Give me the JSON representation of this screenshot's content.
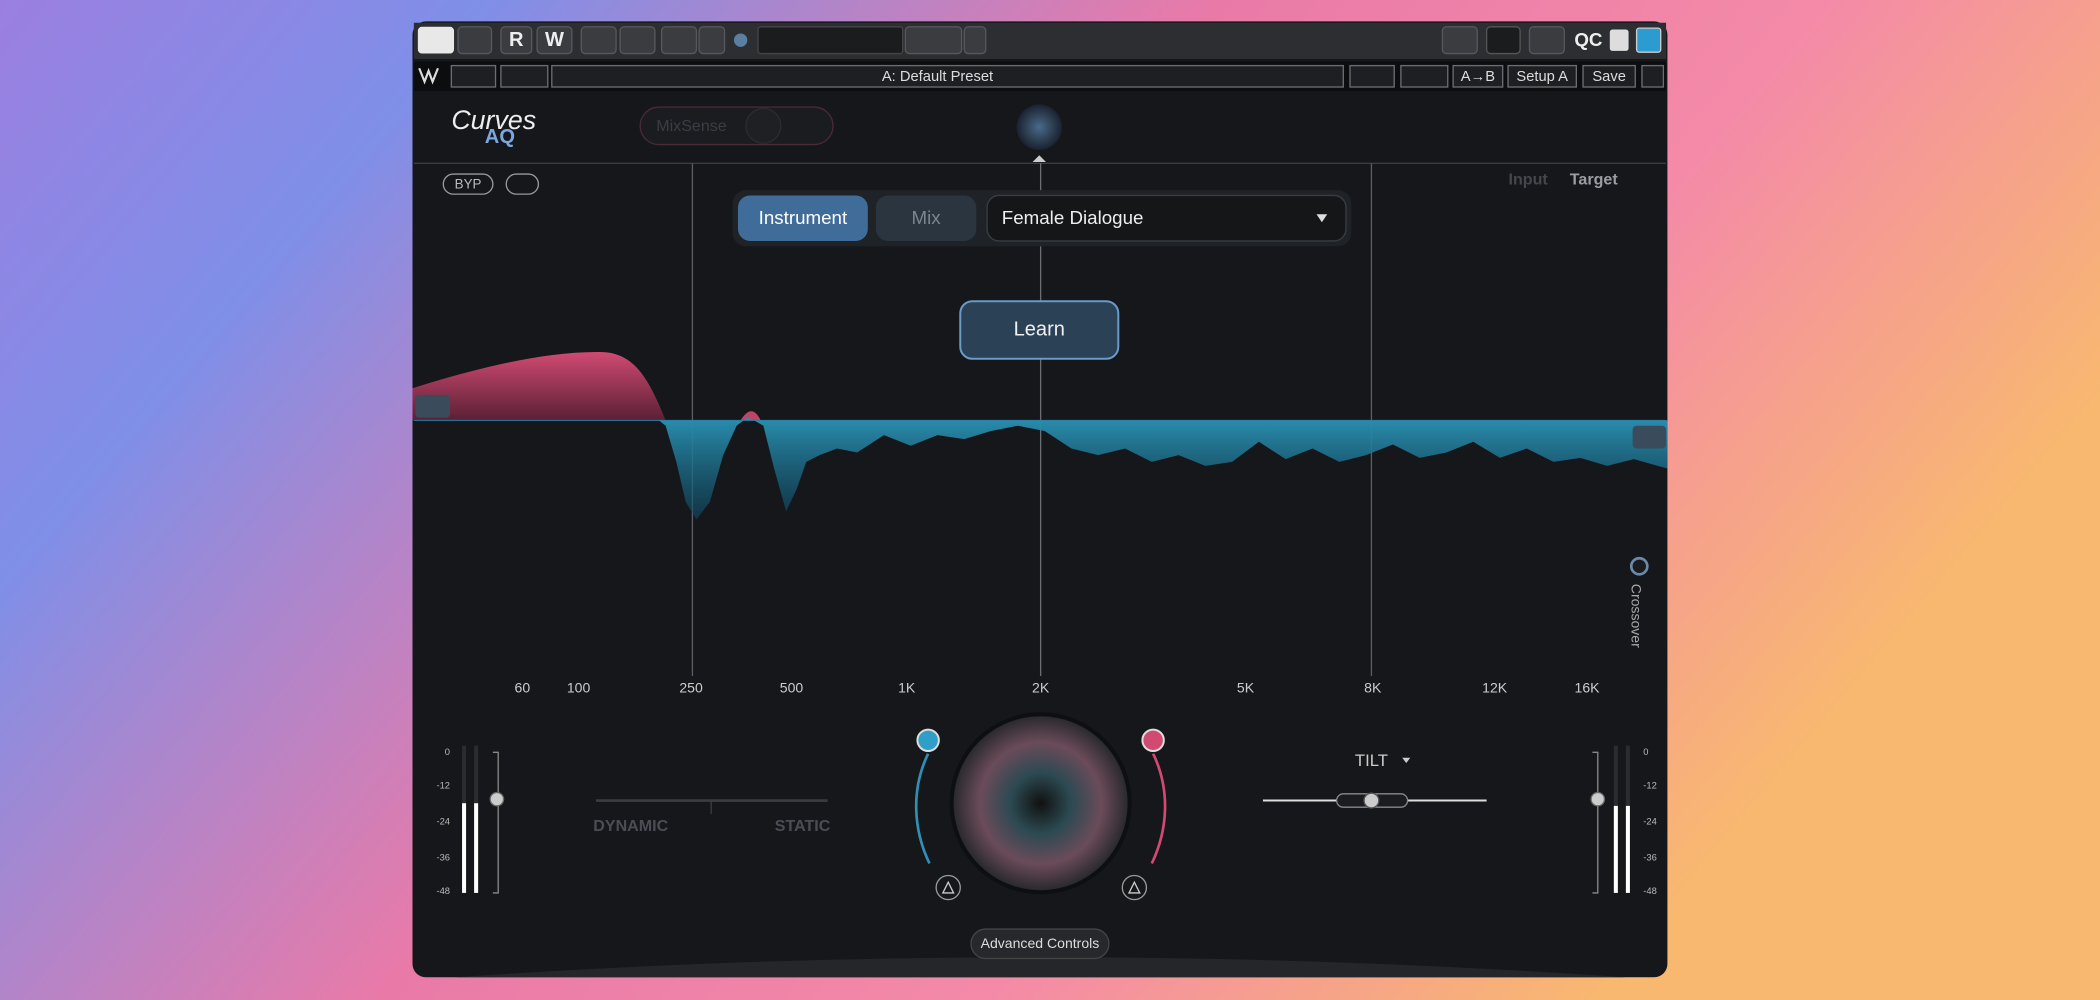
{
  "toolbar": {
    "record": "R",
    "write": "W",
    "qc": "QC"
  },
  "preset_bar": {
    "preset": "A: Default Preset",
    "compare": "A→B",
    "setup": "Setup A",
    "save": "Save"
  },
  "logo": {
    "line1": "Curves",
    "line2": "AQ"
  },
  "mixsense": "MixSense",
  "bypass": "BYP",
  "view_toggle": {
    "input": "Input",
    "target": "Target"
  },
  "source": {
    "instrument": "Instrument",
    "mix": "Mix",
    "profile": "Female Dialogue"
  },
  "learn": "Learn",
  "frequency_labels": [
    "60",
    "100",
    "250",
    "500",
    "1K",
    "2K",
    "5K",
    "8K",
    "12K",
    "16K"
  ],
  "crossover": "Crossover",
  "meter_left": {
    "ticks": [
      "0",
      "-12",
      "-24",
      "-36",
      "-48"
    ]
  },
  "meter_right": {
    "ticks": [
      "0",
      "-12",
      "-24",
      "-36",
      "-48"
    ]
  },
  "character": {
    "dynamic": "DYNAMIC",
    "static": "STATIC"
  },
  "tilt": "TILT",
  "advanced": "Advanced Controls"
}
